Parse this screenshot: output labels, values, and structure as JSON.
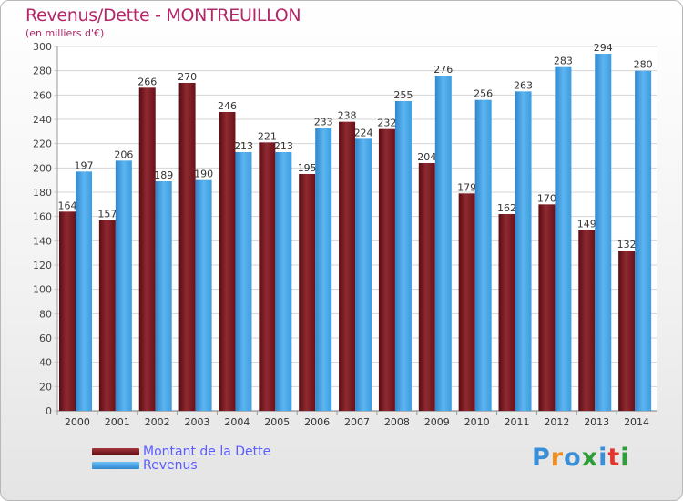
{
  "chart_data": {
    "type": "bar",
    "title": "Revenus/Dette - MONTREUILLON",
    "subtitle": "(en milliers d'€)",
    "categories": [
      "2000",
      "2001",
      "2002",
      "2003",
      "2004",
      "2005",
      "2006",
      "2007",
      "2008",
      "2009",
      "2010",
      "2011",
      "2012",
      "2013",
      "2014"
    ],
    "series": [
      {
        "name": "Montant de la Dette",
        "values": [
          164,
          157,
          266,
          270,
          246,
          221,
          195,
          238,
          232,
          204,
          179,
          162,
          170,
          149,
          132
        ],
        "color": "#6b0f16"
      },
      {
        "name": "Revenus",
        "values": [
          197,
          206,
          189,
          190,
          213,
          213,
          233,
          224,
          255,
          276,
          256,
          263,
          283,
          294,
          280
        ],
        "color": "#3fa0e6"
      }
    ],
    "ylim": [
      0,
      300
    ],
    "yticks": [
      0,
      20,
      40,
      60,
      80,
      100,
      120,
      140,
      160,
      180,
      200,
      220,
      240,
      260,
      280,
      300
    ],
    "grid": true,
    "legend": "bottom-left"
  },
  "logo": {
    "text": "Proxiti",
    "parts": [
      "P",
      "r",
      "o",
      "x",
      "i",
      "t",
      "i"
    ]
  }
}
